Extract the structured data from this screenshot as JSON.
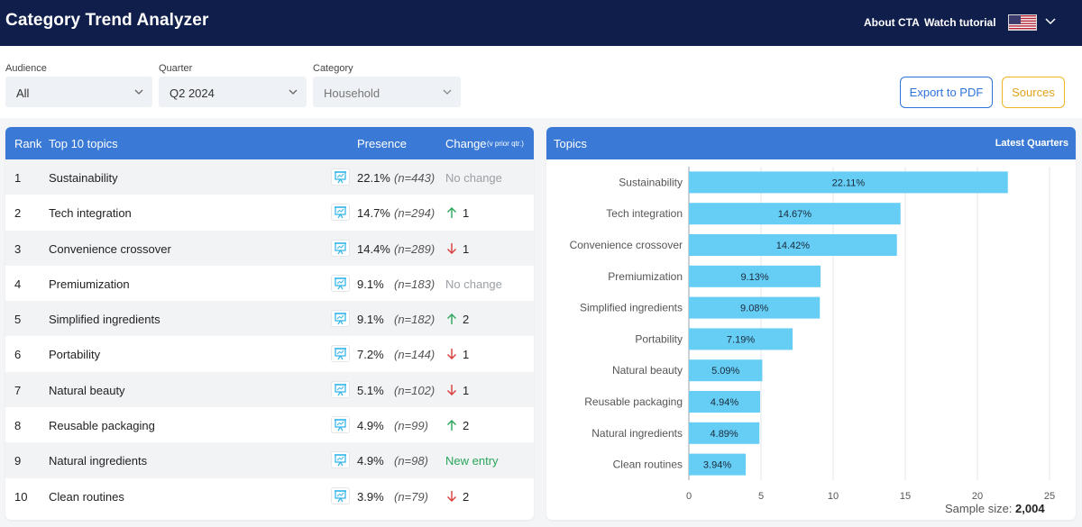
{
  "header": {
    "title": "Category Trend Analyzer",
    "links": {
      "about": "About CTA",
      "tutorial": "Watch tutorial"
    },
    "language_icon": "us-flag-icon"
  },
  "filters": {
    "audience": {
      "label": "Audience",
      "value": "All"
    },
    "quarter": {
      "label": "Quarter",
      "value": "Q2 2024"
    },
    "category": {
      "label": "Category",
      "value": "Household"
    }
  },
  "actions": {
    "export": "Export to PDF",
    "sources": "Sources"
  },
  "table": {
    "headers": {
      "rank": "Rank",
      "topics": "Top 10 topics",
      "presence": "Presence",
      "change": "Change",
      "change_note": "(v prior qtr.)"
    },
    "rows": [
      {
        "rank": "1",
        "topic": "Sustainability",
        "presence": "22.1%",
        "n": "(n=443)",
        "change": "No change",
        "dir": "none"
      },
      {
        "rank": "2",
        "topic": "Tech integration",
        "presence": "14.7%",
        "n": "(n=294)",
        "change": "1",
        "dir": "up"
      },
      {
        "rank": "3",
        "topic": "Convenience crossover",
        "presence": "14.4%",
        "n": "(n=289)",
        "change": "1",
        "dir": "down"
      },
      {
        "rank": "4",
        "topic": "Premiumization",
        "presence": "9.1%",
        "n": "(n=183)",
        "change": "No change",
        "dir": "none"
      },
      {
        "rank": "5",
        "topic": "Simplified ingredients",
        "presence": "9.1%",
        "n": "(n=182)",
        "change": "2",
        "dir": "up"
      },
      {
        "rank": "6",
        "topic": "Portability",
        "presence": "7.2%",
        "n": "(n=144)",
        "change": "1",
        "dir": "down"
      },
      {
        "rank": "7",
        "topic": "Natural beauty",
        "presence": "5.1%",
        "n": "(n=102)",
        "change": "1",
        "dir": "down"
      },
      {
        "rank": "8",
        "topic": "Reusable packaging",
        "presence": "4.9%",
        "n": "(n=99)",
        "change": "2",
        "dir": "up"
      },
      {
        "rank": "9",
        "topic": "Natural ingredients",
        "presence": "4.9%",
        "n": "(n=98)",
        "change": "New entry",
        "dir": "new"
      },
      {
        "rank": "10",
        "topic": "Clean routines",
        "presence": "3.9%",
        "n": "(n=79)",
        "change": "2",
        "dir": "down"
      }
    ],
    "colors": {
      "up": "#2aa55a",
      "down": "#d93a3a"
    }
  },
  "chart_panel": {
    "title": "Topics",
    "subtitle": "Latest Quarters",
    "sample_label": "Sample size:",
    "sample_value": "2,004"
  },
  "chart_data": {
    "type": "bar",
    "orientation": "horizontal",
    "categories": [
      "Sustainability",
      "Tech integration",
      "Convenience crossover",
      "Premiumization",
      "Simplified ingredients",
      "Portability",
      "Natural beauty",
      "Reusable packaging",
      "Natural ingredients",
      "Clean routines"
    ],
    "values": [
      22.11,
      14.67,
      14.42,
      9.13,
      9.08,
      7.19,
      5.09,
      4.94,
      4.89,
      3.94
    ],
    "labels": [
      "22.11%",
      "14.67%",
      "14.42%",
      "9.13%",
      "9.08%",
      "7.19%",
      "5.09%",
      "4.94%",
      "4.89%",
      "3.94%"
    ],
    "xlim": [
      0,
      25
    ],
    "xticks": [
      0,
      5,
      10,
      15,
      20,
      25
    ],
    "grid": true,
    "bar_color": "#66cdf5"
  }
}
